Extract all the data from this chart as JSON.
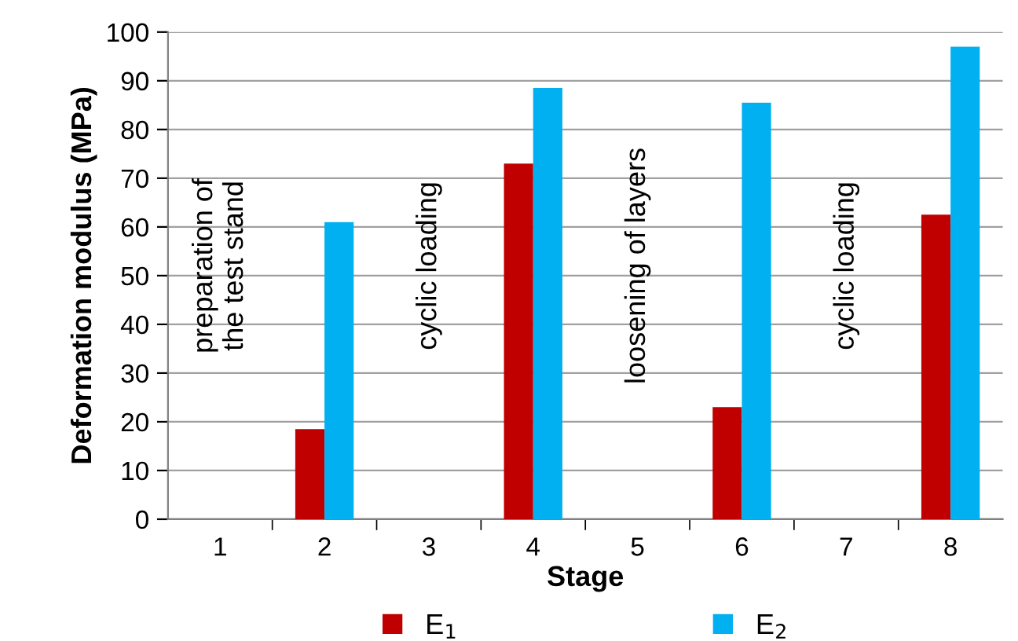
{
  "chart_data": {
    "type": "bar",
    "xlabel": "Stage",
    "ylabel": "Deformation modulus (MPa)",
    "categories": [
      "1",
      "2",
      "3",
      "4",
      "5",
      "6",
      "7",
      "8"
    ],
    "series": [
      {
        "name": "E$_{1}$",
        "color": "#c00000",
        "values": [
          null,
          18.5,
          null,
          73,
          null,
          23,
          null,
          62.5
        ]
      },
      {
        "name": "E$_{2}$",
        "color": "#00b0f0",
        "values": [
          null,
          61,
          null,
          88.5,
          null,
          85.5,
          null,
          97
        ]
      }
    ],
    "ylim": [
      0,
      100
    ],
    "yticks": [
      0,
      10,
      20,
      30,
      40,
      50,
      60,
      70,
      80,
      90,
      100
    ],
    "grid": "y",
    "legend": "bottom",
    "annotations": [
      "preparation of\nthe test stand",
      "cyclic loading",
      "loosening of layers",
      "cyclic loading"
    ]
  }
}
